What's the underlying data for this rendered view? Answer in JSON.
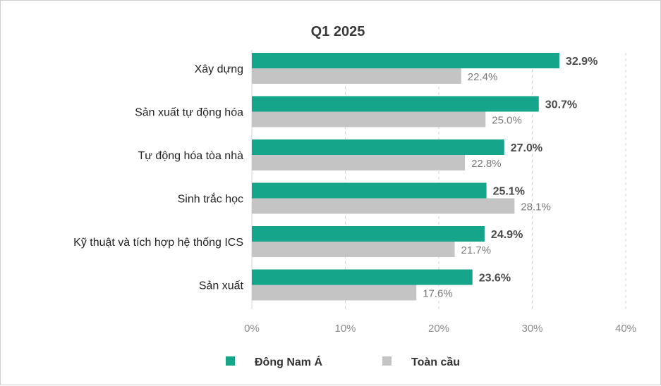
{
  "chart_data": {
    "type": "bar",
    "orientation": "horizontal",
    "title": "Q1 2025",
    "categories": [
      "Xây dựng",
      "Sản xuất tự động hóa",
      "Tự động hóa tòa nhà",
      "Sinh trắc học",
      "Kỹ thuật và tích hợp hệ thống ICS",
      "Sản xuất"
    ],
    "series": [
      {
        "name": "Đông Nam Á",
        "color": "#14a58a",
        "values": [
          32.9,
          30.7,
          27.0,
          25.1,
          24.9,
          23.6
        ],
        "labels": [
          "32.9%",
          "30.7%",
          "27.0%",
          "25.1%",
          "24.9%",
          "23.6%"
        ]
      },
      {
        "name": "Toàn cầu",
        "color": "#c4c4c4",
        "values": [
          22.4,
          25.0,
          22.8,
          28.1,
          21.7,
          17.6
        ],
        "labels": [
          "22.4%",
          "25.0%",
          "22.8%",
          "28.1%",
          "21.7%",
          "17.6%"
        ]
      }
    ],
    "xlim": [
      0,
      40
    ],
    "xticks": [
      0,
      10,
      20,
      30,
      40
    ],
    "xtick_labels": [
      "0%",
      "10%",
      "20%",
      "30%",
      "40%"
    ],
    "grid": "vertical dashed",
    "legend": "bottom-center"
  }
}
